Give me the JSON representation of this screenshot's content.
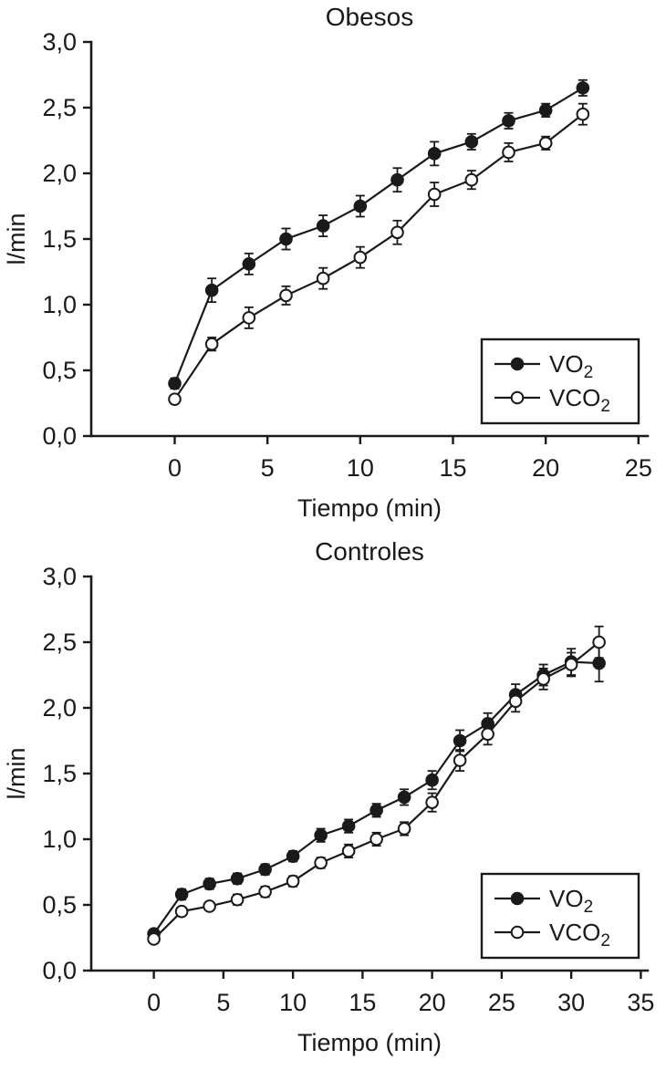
{
  "page": {
    "background": "#ffffff",
    "ink": "#1a1a1a"
  },
  "chart_data": [
    {
      "type": "line",
      "title": "Obesos",
      "xlabel": "Tiempo (min)",
      "ylabel": "l/min",
      "xlim": [
        -4.5,
        25.5
      ],
      "ylim": [
        0,
        3
      ],
      "xticks": [
        0,
        5,
        10,
        15,
        20,
        25
      ],
      "yticks": [
        0,
        0.5,
        1,
        1.5,
        2,
        2.5,
        3
      ],
      "ytick_labels": [
        "0,0",
        "0,5",
        "1,0",
        "1,5",
        "2,0",
        "2,5",
        "3,0"
      ],
      "grid": false,
      "legend_position": "lower-right",
      "x": [
        0,
        2,
        4,
        6,
        8,
        10,
        12,
        14,
        16,
        18,
        20,
        22
      ],
      "series": [
        {
          "name": "VO2",
          "label": "VO",
          "label_sub": "2",
          "marker": "filled",
          "values": [
            0.4,
            1.11,
            1.31,
            1.5,
            1.6,
            1.75,
            1.95,
            2.15,
            2.24,
            2.4,
            2.48,
            2.65
          ],
          "errors": [
            0.04,
            0.09,
            0.08,
            0.08,
            0.08,
            0.08,
            0.09,
            0.09,
            0.06,
            0.06,
            0.05,
            0.06
          ]
        },
        {
          "name": "VCO2",
          "label": "VCO",
          "label_sub": "2",
          "marker": "open",
          "values": [
            0.28,
            0.7,
            0.9,
            1.07,
            1.2,
            1.36,
            1.55,
            1.84,
            1.95,
            2.16,
            2.23,
            2.45
          ],
          "errors": [
            0.03,
            0.05,
            0.08,
            0.07,
            0.08,
            0.08,
            0.09,
            0.09,
            0.07,
            0.07,
            0.05,
            0.08
          ]
        }
      ]
    },
    {
      "type": "line",
      "title": "Controles",
      "xlabel": "Tiempo (min)",
      "ylabel": "l/min",
      "xlim": [
        -4.5,
        35.5
      ],
      "ylim": [
        0,
        3
      ],
      "xticks": [
        0,
        5,
        10,
        15,
        20,
        25,
        30,
        35
      ],
      "yticks": [
        0,
        0.5,
        1,
        1.5,
        2,
        2.5,
        3
      ],
      "ytick_labels": [
        "0,0",
        "0,5",
        "1,0",
        "1,5",
        "2,0",
        "2,5",
        "3,0"
      ],
      "grid": false,
      "legend_position": "lower-right",
      "x": [
        0,
        2,
        4,
        6,
        8,
        10,
        12,
        14,
        16,
        18,
        20,
        22,
        24,
        26,
        28,
        30,
        32
      ],
      "series": [
        {
          "name": "VO2",
          "label": "VO",
          "label_sub": "2",
          "marker": "filled",
          "values": [
            0.28,
            0.58,
            0.66,
            0.7,
            0.77,
            0.87,
            1.03,
            1.1,
            1.22,
            1.32,
            1.45,
            1.75,
            1.88,
            2.1,
            2.25,
            2.35,
            2.34
          ],
          "errors": [
            0.03,
            0.04,
            0.04,
            0.04,
            0.04,
            0.04,
            0.05,
            0.05,
            0.05,
            0.06,
            0.07,
            0.08,
            0.08,
            0.08,
            0.08,
            0.1,
            0.14
          ]
        },
        {
          "name": "VCO2",
          "label": "VCO",
          "label_sub": "2",
          "marker": "open",
          "values": [
            0.24,
            0.45,
            0.49,
            0.54,
            0.6,
            0.68,
            0.82,
            0.91,
            1.0,
            1.08,
            1.28,
            1.6,
            1.8,
            2.05,
            2.22,
            2.33,
            2.5
          ],
          "errors": [
            0.03,
            0.03,
            0.03,
            0.04,
            0.04,
            0.04,
            0.04,
            0.05,
            0.05,
            0.05,
            0.07,
            0.08,
            0.08,
            0.08,
            0.08,
            0.09,
            0.12
          ]
        }
      ]
    }
  ]
}
